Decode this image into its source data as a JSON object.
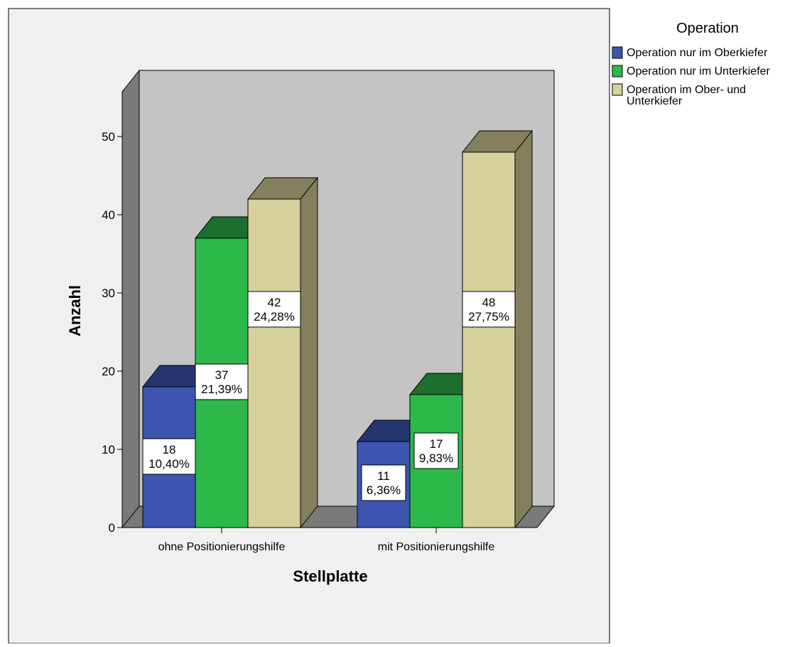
{
  "chart_data": {
    "type": "bar",
    "style": "3d-clustered",
    "title": "",
    "xlabel": "Stellplatte",
    "ylabel": "Anzahl",
    "ylim": [
      0,
      55
    ],
    "yticks": [
      "0",
      "10",
      "20",
      "30",
      "40",
      "50"
    ],
    "categories": [
      "ohne Positionierungshilfe",
      "mit Positionierungshilfe"
    ],
    "legend_title": "Operation",
    "legend_position": "top-right",
    "grid": false,
    "series": [
      {
        "name": "Operation nur im Oberkiefer",
        "values": [
          18,
          11
        ],
        "labels": [
          "18",
          "11"
        ],
        "percent_labels": [
          "10,40%",
          "6,36%"
        ],
        "color": "#3C56AF",
        "top_color": "#243570",
        "side_color": "#243570"
      },
      {
        "name": "Operation nur im Unterkiefer",
        "values": [
          37,
          17
        ],
        "labels": [
          "37",
          "17"
        ],
        "percent_labels": [
          "21,39%",
          "9,83%"
        ],
        "color": "#2DB84A",
        "top_color": "#1E6E2E",
        "side_color": "#1E6E2E"
      },
      {
        "name_lines": [
          "Operation im Ober- und",
          "Unterkiefer"
        ],
        "name": "Operation im Ober- und Unterkiefer",
        "values": [
          42,
          48
        ],
        "labels": [
          "42",
          "48"
        ],
        "percent_labels": [
          "24,28%",
          "27,75%"
        ],
        "color": "#D6D09B",
        "top_color": "#847F5C",
        "side_color": "#847F5C"
      }
    ]
  },
  "colors": {
    "background": "#F0F0F0",
    "back_wall": "#C4C4C4",
    "side_wall": "#7A7A7A",
    "floor": "#7A7A7A",
    "outline": "#000000"
  }
}
